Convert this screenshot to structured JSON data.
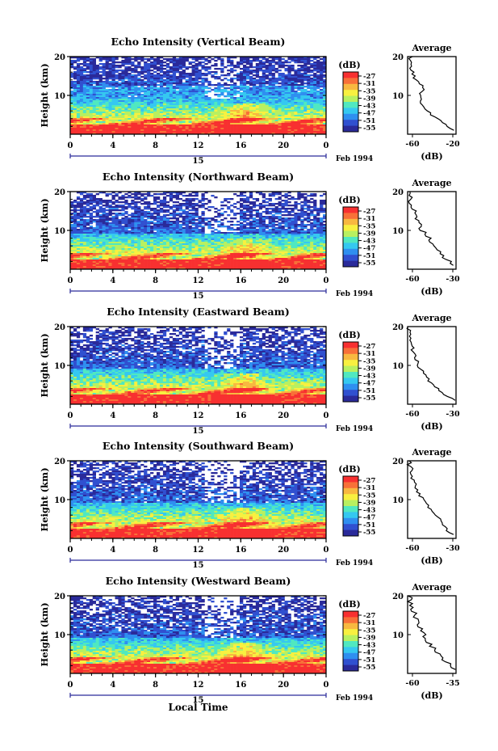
{
  "figure": {
    "xlabel": "Local Time",
    "date_label": "Feb 1994",
    "day_label": "15",
    "ylabel": "Height (km)",
    "colorbar_unit": "(dB)",
    "colorbar_ticks": [
      "-27",
      "-31",
      "-35",
      "-39",
      "-43",
      "-47",
      "-51",
      "-55"
    ],
    "colormap": [
      "#2a2a9a",
      "#3050d0",
      "#2f8ff0",
      "#35c8f0",
      "#50e8c0",
      "#b8f060",
      "#f8f040",
      "#f8b840",
      "#f87038",
      "#f83030"
    ],
    "average_title": "Average",
    "average_xlabel": "(dB)"
  },
  "chart_data": [
    {
      "type": "heatmap",
      "title": "Echo Intensity (Vertical Beam)",
      "x_ticks": [
        "0",
        "4",
        "8",
        "12",
        "16",
        "20",
        "0"
      ],
      "xlim": [
        0,
        24
      ],
      "ylim": [
        0,
        20
      ],
      "y_ticks": [
        "20",
        "10"
      ],
      "colorbar_range_db": [
        -55,
        -27
      ],
      "profile": {
        "xlim": [
          -60,
          -20
        ],
        "x_ticks": [
          "-60",
          "-20"
        ],
        "y_ticks": [
          "20",
          "10"
        ],
        "heights": [
          1,
          2,
          3,
          4,
          5,
          6,
          7,
          8,
          9,
          10,
          11,
          12,
          13,
          14,
          15,
          16,
          17,
          18,
          19,
          20
        ],
        "values": [
          -21,
          -26,
          -31,
          -36,
          -40,
          -44,
          -46,
          -48,
          -49,
          -50,
          -48,
          -47,
          -50,
          -53,
          -55,
          -56,
          -57,
          -58,
          -58,
          -57
        ]
      }
    },
    {
      "type": "heatmap",
      "title": "Echo Intensity (Northward Beam)",
      "x_ticks": [
        "0",
        "4",
        "8",
        "12",
        "16",
        "20",
        "0"
      ],
      "xlim": [
        0,
        24
      ],
      "ylim": [
        0,
        20
      ],
      "y_ticks": [
        "20",
        "10"
      ],
      "colorbar_range_db": [
        -55,
        -27
      ],
      "profile": {
        "xlim": [
          -60,
          -30
        ],
        "x_ticks": [
          "-60",
          "-30"
        ],
        "y_ticks": [
          "20",
          "10"
        ],
        "heights": [
          1,
          2,
          3,
          4,
          5,
          6,
          7,
          8,
          9,
          10,
          11,
          12,
          13,
          14,
          15,
          16,
          17,
          18,
          19,
          20
        ],
        "values": [
          -31,
          -34,
          -37,
          -39,
          -41,
          -43,
          -45,
          -47,
          -49,
          -51,
          -52,
          -53,
          -54,
          -55,
          -56,
          -57,
          -58,
          -58,
          -59,
          -59
        ]
      }
    },
    {
      "type": "heatmap",
      "title": "Echo Intensity (Eastward Beam)",
      "x_ticks": [
        "0",
        "4",
        "8",
        "12",
        "16",
        "20",
        "0"
      ],
      "xlim": [
        0,
        24
      ],
      "ylim": [
        0,
        20
      ],
      "y_ticks": [
        "20",
        "10"
      ],
      "colorbar_range_db": [
        -55,
        -27
      ],
      "profile": {
        "xlim": [
          -60,
          -30
        ],
        "x_ticks": [
          "-60",
          "-30"
        ],
        "y_ticks": [
          "20",
          "10"
        ],
        "heights": [
          1,
          2,
          3,
          4,
          5,
          6,
          7,
          8,
          9,
          10,
          11,
          12,
          13,
          14,
          15,
          16,
          17,
          18,
          19,
          20
        ],
        "values": [
          -31,
          -36,
          -39,
          -42,
          -44,
          -46,
          -48,
          -50,
          -52,
          -53,
          -54,
          -55,
          -56,
          -57,
          -57,
          -58,
          -58,
          -59,
          -59,
          -59
        ]
      }
    },
    {
      "type": "heatmap",
      "title": "Echo Intensity (Southward Beam)",
      "x_ticks": [
        "0",
        "4",
        "8",
        "12",
        "16",
        "20",
        "0"
      ],
      "xlim": [
        0,
        24
      ],
      "ylim": [
        0,
        20
      ],
      "y_ticks": [
        "20",
        "10"
      ],
      "colorbar_range_db": [
        -55,
        -27
      ],
      "profile": {
        "xlim": [
          -60,
          -30
        ],
        "x_ticks": [
          "-60",
          "-30"
        ],
        "y_ticks": [
          "20",
          "10"
        ],
        "heights": [
          1,
          2,
          3,
          4,
          5,
          6,
          7,
          8,
          9,
          10,
          11,
          12,
          13,
          14,
          15,
          16,
          17,
          18,
          19,
          20
        ],
        "values": [
          -31,
          -35,
          -37,
          -39,
          -41,
          -43,
          -45,
          -47,
          -49,
          -51,
          -52,
          -53,
          -54,
          -55,
          -56,
          -57,
          -58,
          -58,
          -59,
          -59
        ]
      }
    },
    {
      "type": "heatmap",
      "title": "Echo Intensity (Westward Beam)",
      "x_ticks": [
        "0",
        "4",
        "8",
        "12",
        "16",
        "20",
        "0"
      ],
      "xlim": [
        0,
        24
      ],
      "ylim": [
        0,
        20
      ],
      "y_ticks": [
        "20",
        "10"
      ],
      "colorbar_range_db": [
        -55,
        -27
      ],
      "profile": {
        "xlim": [
          -60,
          -35
        ],
        "x_ticks": [
          "-60",
          "-35"
        ],
        "y_ticks": [
          "20",
          "10"
        ],
        "heights": [
          1,
          2,
          3,
          4,
          5,
          6,
          7,
          8,
          9,
          10,
          11,
          12,
          13,
          14,
          15,
          16,
          17,
          18,
          19,
          20
        ],
        "values": [
          -35,
          -38,
          -40,
          -42,
          -44,
          -46,
          -48,
          -49,
          -51,
          -52,
          -53,
          -54,
          -55,
          -56,
          -56,
          -57,
          -58,
          -58,
          -59,
          -59
        ]
      }
    }
  ]
}
